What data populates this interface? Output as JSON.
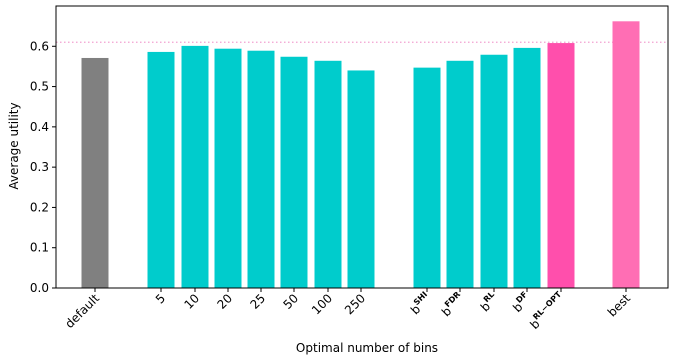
{
  "chart_data": {
    "type": "bar",
    "xlabel": "Optimal number of bins",
    "ylabel": "Average utility",
    "ylim": [
      0,
      0.7
    ],
    "yticks": [
      0.0,
      0.1,
      0.2,
      0.3,
      0.4,
      0.5,
      0.6
    ],
    "ytick_labels": [
      "0.0",
      "0.1",
      "0.2",
      "0.3",
      "0.4",
      "0.5",
      "0.6"
    ],
    "grid": false,
    "reference_line": {
      "value": 0.61,
      "style": "dotted",
      "color": "#f2a0d0"
    },
    "colors": {
      "default": "#808080",
      "bins": "#00cccc",
      "best_rule": "#ff4fac",
      "best": "#ff6eb4"
    },
    "bars": [
      {
        "label": "default",
        "value": 0.571,
        "color": "#808080"
      },
      {
        "label": "5",
        "value": 0.586,
        "color": "#00cccc"
      },
      {
        "label": "10",
        "value": 0.601,
        "color": "#00cccc"
      },
      {
        "label": "20",
        "value": 0.594,
        "color": "#00cccc"
      },
      {
        "label": "25",
        "value": 0.589,
        "color": "#00cccc"
      },
      {
        "label": "50",
        "value": 0.574,
        "color": "#00cccc"
      },
      {
        "label": "100",
        "value": 0.564,
        "color": "#00cccc"
      },
      {
        "label": "250",
        "value": 0.54,
        "color": "#00cccc"
      },
      {
        "label": "b",
        "sup": "SHI",
        "value": 0.547,
        "color": "#00cccc"
      },
      {
        "label": "b",
        "sup": "FDR",
        "value": 0.564,
        "color": "#00cccc"
      },
      {
        "label": "b",
        "sup": "RL",
        "value": 0.579,
        "color": "#00cccc"
      },
      {
        "label": "b",
        "sup": "DF",
        "value": 0.596,
        "color": "#00cccc"
      },
      {
        "label": "b",
        "sup": "RL−OPT",
        "value": 0.608,
        "color": "#ff4fac"
      },
      {
        "label": "best",
        "value": 0.662,
        "color": "#ff6eb4"
      }
    ]
  }
}
